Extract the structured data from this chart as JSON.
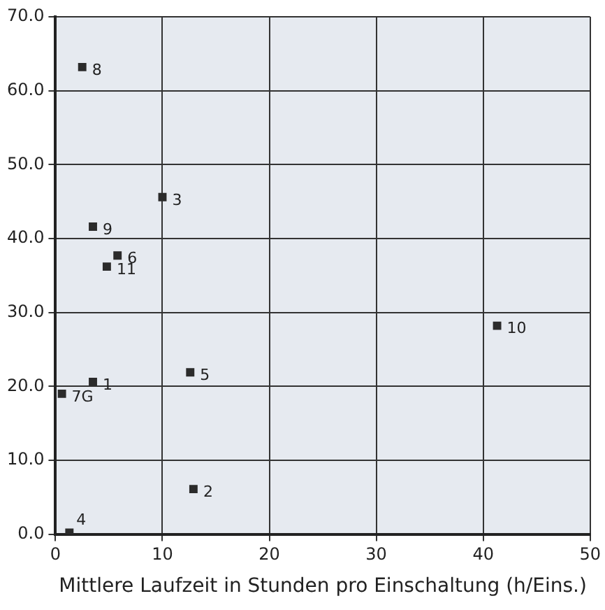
{
  "chart_data": {
    "type": "scatter",
    "xlabel": "Mittlere Laufzeit in Stunden pro Einschaltung (h/Eins.)",
    "series": [
      {
        "color": "#2b2b2b",
        "x": [
          3.5,
          12.9,
          10.0,
          1.3,
          12.6,
          5.8,
          0.6,
          2.5,
          3.5,
          41.3,
          4.8
        ],
        "values": [
          20.6,
          6.1,
          45.6,
          0.2,
          21.9,
          37.7,
          19.0,
          63.2,
          41.6,
          28.2,
          36.2
        ]
      }
    ],
    "annotations": [
      {
        "text": "1",
        "x": 3.5,
        "y": 20.6
      },
      {
        "text": "2",
        "x": 12.9,
        "y": 6.1
      },
      {
        "text": "3",
        "x": 10.0,
        "y": 45.6
      },
      {
        "text": "4",
        "x": 1.3,
        "y": 0.2
      },
      {
        "text": "5",
        "x": 12.6,
        "y": 21.9
      },
      {
        "text": "6",
        "x": 5.8,
        "y": 37.7
      },
      {
        "text": "7G",
        "x": 0.6,
        "y": 19.0
      },
      {
        "text": "8",
        "x": 2.5,
        "y": 63.2
      },
      {
        "text": "9",
        "x": 3.5,
        "y": 41.6
      },
      {
        "text": "10",
        "x": 41.3,
        "y": 28.2
      },
      {
        "text": "11",
        "x": 4.8,
        "y": 36.2
      }
    ],
    "xlim": [
      0,
      50
    ],
    "xticks": [
      0,
      10,
      20,
      30,
      40,
      50
    ],
    "ylim": [
      0,
      70
    ],
    "yticks": [
      {
        "value": 0,
        "label": "0.0"
      },
      {
        "value": 10,
        "label": "10.0"
      },
      {
        "value": 20,
        "label": "20.0"
      },
      {
        "value": 30,
        "label": "30.0"
      },
      {
        "value": 40,
        "label": "40.0"
      },
      {
        "value": 50,
        "label": "50.0"
      },
      {
        "value": 60,
        "label": "60.0"
      },
      {
        "value": 70,
        "label": "70.0"
      }
    ],
    "grid": true,
    "legend": false,
    "marker": "square"
  }
}
